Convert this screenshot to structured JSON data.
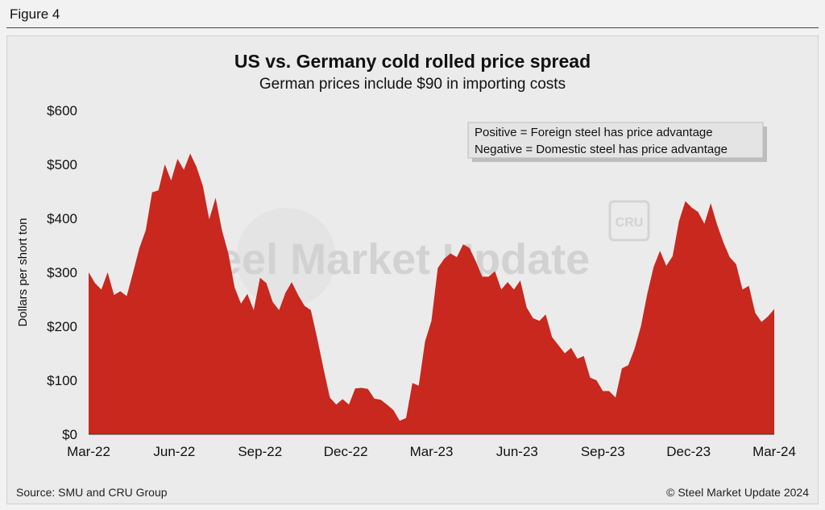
{
  "figure_label": "Figure 4",
  "chart_data": {
    "type": "area",
    "title": "US vs. Germany cold rolled price spread",
    "subtitle": "German prices include $90 in importing costs",
    "xlabel": "",
    "ylabel": "Dollars per short ton",
    "ylim": [
      0,
      600
    ],
    "yticks": [
      0,
      100,
      200,
      300,
      400,
      500,
      600
    ],
    "ytick_labels": [
      "$0",
      "$100",
      "$200",
      "$300",
      "$400",
      "$500",
      "$600"
    ],
    "xtick_labels": [
      "Mar-22",
      "Jun-22",
      "Sep-22",
      "Dec-22",
      "Mar-23",
      "Jun-23",
      "Sep-23",
      "Dec-23",
      "Mar-24"
    ],
    "grid": false,
    "color": "#c8281e",
    "values": [
      300,
      280,
      268,
      300,
      258,
      265,
      256,
      300,
      345,
      378,
      448,
      452,
      500,
      470,
      510,
      490,
      520,
      495,
      460,
      398,
      438,
      378,
      335,
      272,
      242,
      260,
      230,
      290,
      280,
      245,
      230,
      262,
      282,
      258,
      238,
      230,
      178,
      122,
      68,
      55,
      65,
      55,
      85,
      86,
      84,
      66,
      64,
      55,
      45,
      25,
      30,
      95,
      90,
      172,
      210,
      308,
      325,
      335,
      328,
      352,
      345,
      320,
      292,
      292,
      302,
      268,
      282,
      268,
      285,
      235,
      215,
      210,
      222,
      180,
      165,
      150,
      160,
      140,
      145,
      105,
      100,
      80,
      80,
      68,
      122,
      128,
      158,
      200,
      260,
      310,
      340,
      312,
      330,
      395,
      432,
      420,
      412,
      390,
      428,
      388,
      355,
      328,
      315,
      268,
      275,
      225,
      208,
      218,
      232
    ],
    "legend_lines": [
      "Positive = Foreign steel has price advantage",
      "Negative = Domestic steel has price advantage"
    ]
  },
  "watermark": {
    "text": "Steel Market Update",
    "logo": "CRU"
  },
  "footer": {
    "source": "Source: SMU and CRU Group",
    "copyright": "© Steel Market Update 2024"
  }
}
